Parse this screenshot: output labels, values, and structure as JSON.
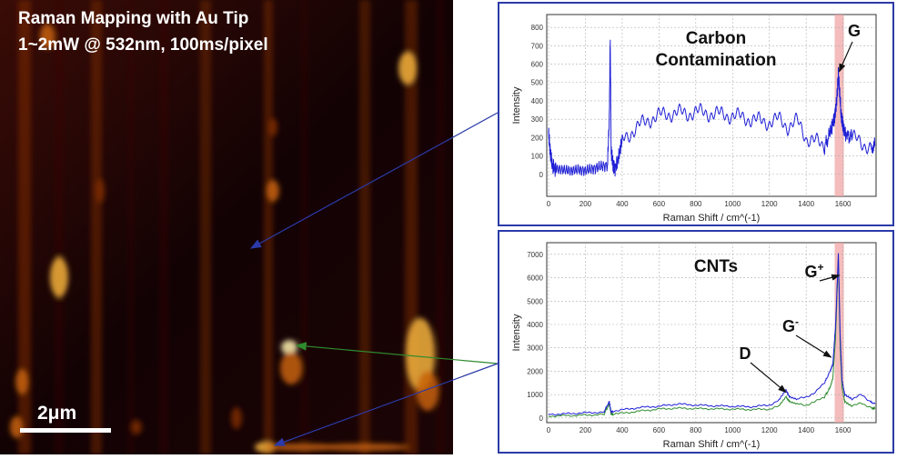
{
  "map": {
    "title_line1": "Raman Mapping with Au Tip",
    "title_line2": "1~2mW @ 532nm, 100ms/pixel",
    "scale_label": "2μm",
    "colormap": [
      "#120204",
      "#3a0c06",
      "#7d2b06",
      "#c7620a",
      "#f3b23c",
      "#fff2b0"
    ]
  },
  "colors": {
    "panel_border": "#2b3aa8",
    "series_blue": "#1f1fd6",
    "series_green": "#2e8b2e",
    "highlight": "#f0a0a0",
    "arrow_blue": "#2b3aa8",
    "arrow_green": "#2e8b2e"
  },
  "chart_data": [
    {
      "type": "line",
      "title": "Carbon Contamination",
      "peak_label": "G",
      "xlabel": "Raman Shift / cm^(-1)",
      "ylabel": "Intensity",
      "xlim": [
        -10,
        1780
      ],
      "ylim": [
        -120,
        870
      ],
      "x_ticks": [
        0,
        200,
        400,
        600,
        800,
        1000,
        1200,
        1400,
        1600
      ],
      "y_ticks": [
        0,
        100,
        200,
        300,
        400,
        500,
        600,
        700,
        800
      ],
      "grid": true,
      "highlight_band": [
        1555,
        1605
      ],
      "series": [
        {
          "color": "#1f1fd6",
          "x": [
            0,
            10,
            20,
            40,
            80,
            120,
            160,
            200,
            240,
            280,
            320,
            330,
            335,
            340,
            350,
            360,
            380,
            400,
            450,
            500,
            550,
            600,
            650,
            700,
            750,
            800,
            850,
            900,
            950,
            1000,
            1050,
            1100,
            1150,
            1200,
            1250,
            1300,
            1350,
            1400,
            1450,
            1500,
            1530,
            1550,
            1560,
            1570,
            1575,
            1580,
            1590,
            1600,
            1620,
            1650,
            1700,
            1750,
            1775
          ],
          "y": [
            220,
            110,
            40,
            30,
            25,
            20,
            25,
            20,
            30,
            40,
            50,
            300,
            760,
            120,
            60,
            30,
            90,
            180,
            230,
            270,
            300,
            320,
            330,
            335,
            330,
            340,
            335,
            330,
            325,
            320,
            310,
            300,
            290,
            285,
            300,
            260,
            290,
            200,
            180,
            150,
            220,
            300,
            350,
            460,
            540,
            470,
            320,
            260,
            210,
            200,
            170,
            150,
            160
          ]
        }
      ]
    },
    {
      "type": "line",
      "title": "CNTs",
      "xlabel": "Raman Shift / cm^(-1)",
      "ylabel": "Intensity",
      "xlim": [
        -10,
        1780
      ],
      "ylim": [
        -200,
        7500
      ],
      "x_ticks": [
        0,
        200,
        400,
        600,
        800,
        1000,
        1200,
        1400,
        1600
      ],
      "y_ticks": [
        0,
        1000,
        2000,
        3000,
        4000,
        5000,
        6000,
        7000
      ],
      "grid": true,
      "highlight_band": [
        1555,
        1605
      ],
      "annotations": [
        {
          "label": "D",
          "x": 1300,
          "y": 1100
        },
        {
          "label": "G-",
          "x": 1530,
          "y": 2700
        },
        {
          "label": "G+",
          "x": 1585,
          "y": 6300
        }
      ],
      "series": [
        {
          "color": "#2e8b2e",
          "x": [
            0,
            100,
            200,
            300,
            330,
            340,
            350,
            400,
            500,
            600,
            700,
            800,
            900,
            1000,
            1100,
            1200,
            1250,
            1290,
            1310,
            1350,
            1400,
            1450,
            1500,
            1530,
            1545,
            1560,
            1575,
            1585,
            1595,
            1610,
            1650,
            1700,
            1750,
            1775
          ],
          "y": [
            80,
            100,
            120,
            150,
            600,
            150,
            180,
            200,
            300,
            380,
            420,
            400,
            390,
            380,
            360,
            380,
            500,
            900,
            700,
            600,
            550,
            700,
            900,
            1300,
            1700,
            3500,
            6900,
            3000,
            1300,
            700,
            500,
            650,
            450,
            400
          ]
        },
        {
          "color": "#1f1fd6",
          "x": [
            0,
            100,
            200,
            300,
            330,
            340,
            350,
            400,
            500,
            600,
            700,
            800,
            900,
            1000,
            1100,
            1200,
            1250,
            1290,
            1310,
            1350,
            1400,
            1450,
            1500,
            1530,
            1545,
            1560,
            1575,
            1585,
            1595,
            1610,
            1650,
            1700,
            1750,
            1775
          ],
          "y": [
            150,
            180,
            220,
            250,
            700,
            250,
            300,
            350,
            450,
            500,
            600,
            550,
            520,
            500,
            480,
            550,
            750,
            1200,
            900,
            800,
            900,
            1100,
            1500,
            2000,
            2300,
            4000,
            7000,
            3500,
            1600,
            1000,
            800,
            1000,
            700,
            600
          ]
        }
      ]
    }
  ]
}
